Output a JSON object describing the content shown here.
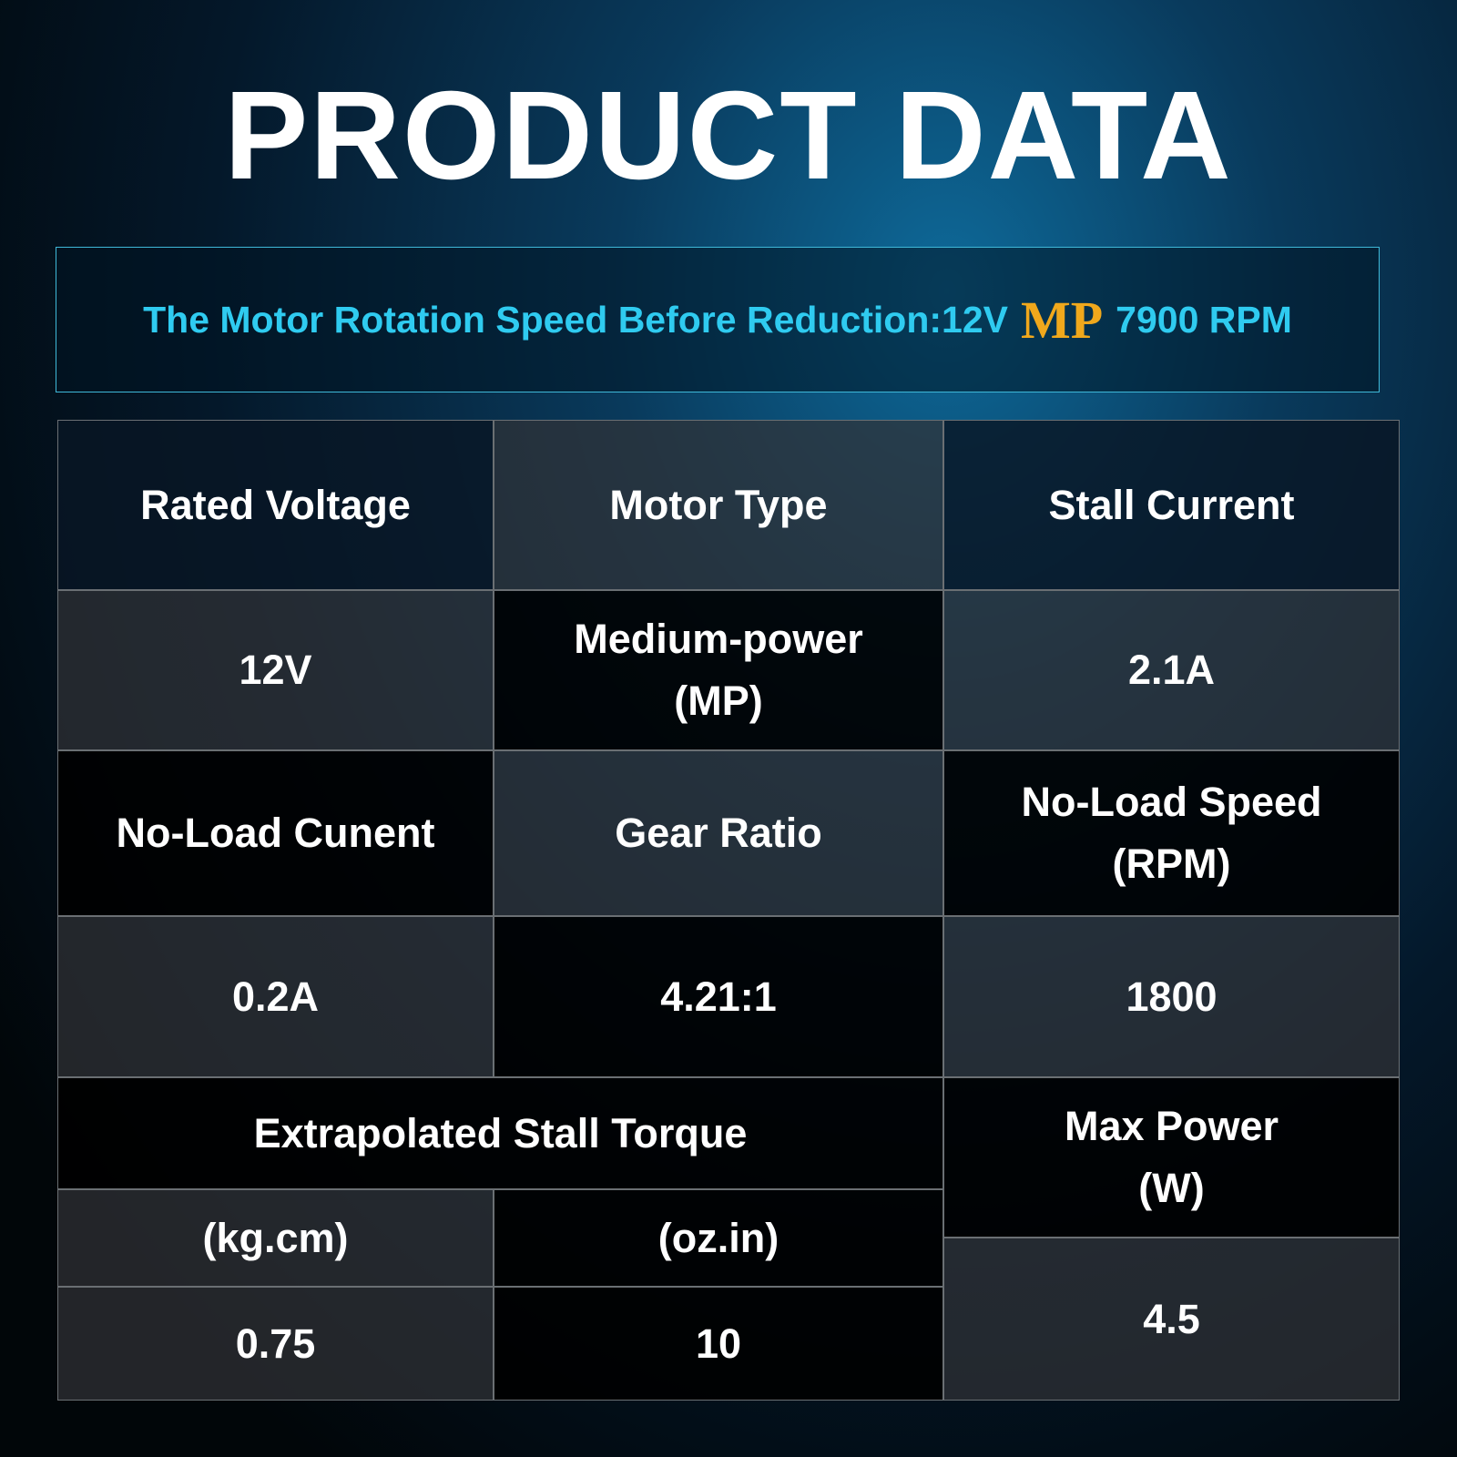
{
  "header": {
    "title": "PRODUCT DATA"
  },
  "banner": {
    "text": "The Motor Rotation Speed Before Reduction:12V",
    "highlight": "MP",
    "speed": "7900 RPM"
  },
  "table": {
    "cells": [
      {
        "lines": [
          "Rated Voltage"
        ]
      },
      {
        "lines": [
          "Motor Type"
        ]
      },
      {
        "lines": [
          "Stall Current"
        ]
      },
      {
        "lines": [
          "12V"
        ]
      },
      {
        "lines": [
          "Medium-power",
          "(MP)"
        ]
      },
      {
        "lines": [
          "2.1A"
        ]
      },
      {
        "lines": [
          "No-Load Cunent"
        ]
      },
      {
        "lines": [
          "Gear Ratio"
        ]
      },
      {
        "lines": [
          "No-Load Speed",
          "(RPM)"
        ]
      },
      {
        "lines": [
          "0.2A"
        ]
      },
      {
        "lines": [
          "4.21:1"
        ]
      },
      {
        "lines": [
          "1800"
        ]
      },
      {
        "lines": [
          "Extrapolated Stall Torque"
        ]
      },
      {
        "lines": [
          "Max Power",
          "(W)"
        ]
      },
      {
        "lines": [
          "(kg.cm)"
        ]
      },
      {
        "lines": [
          "(oz.in)"
        ]
      },
      {
        "lines": [
          "0.75"
        ]
      },
      {
        "lines": [
          "10"
        ]
      },
      {
        "lines": [
          "4.5"
        ]
      }
    ]
  }
}
